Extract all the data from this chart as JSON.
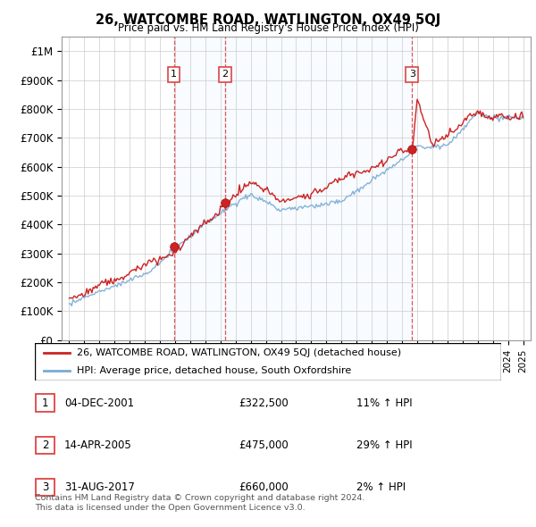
{
  "title": "26, WATCOMBE ROAD, WATLINGTON, OX49 5QJ",
  "subtitle": "Price paid vs. HM Land Registry's House Price Index (HPI)",
  "legend_line1": "26, WATCOMBE ROAD, WATLINGTON, OX49 5QJ (detached house)",
  "legend_line2": "HPI: Average price, detached house, South Oxfordshire",
  "footer1": "Contains HM Land Registry data © Crown copyright and database right 2024.",
  "footer2": "This data is licensed under the Open Government Licence v3.0.",
  "sales": [
    {
      "num": 1,
      "date": "04-DEC-2001",
      "price": 322500,
      "pct": "11%",
      "dir": "↑"
    },
    {
      "num": 2,
      "date": "14-APR-2005",
      "price": 475000,
      "pct": "29%",
      "dir": "↑"
    },
    {
      "num": 3,
      "date": "31-AUG-2017",
      "price": 660000,
      "pct": "2%",
      "dir": "↑"
    }
  ],
  "sale_years": [
    2001.92,
    2005.29,
    2017.66
  ],
  "sale_prices": [
    322500,
    475000,
    660000
  ],
  "hpi_color": "#7aaad4",
  "price_color": "#cc2222",
  "vline_color": "#dd4444",
  "marker_color": "#cc2222",
  "shade_color": "#ddeeff",
  "ylim": [
    0,
    1050000
  ],
  "yticks": [
    0,
    100000,
    200000,
    300000,
    400000,
    500000,
    600000,
    700000,
    800000,
    900000,
    1000000
  ],
  "xlim": [
    1994.5,
    2025.5
  ],
  "background_color": "#ffffff",
  "grid_color": "#cccccc"
}
